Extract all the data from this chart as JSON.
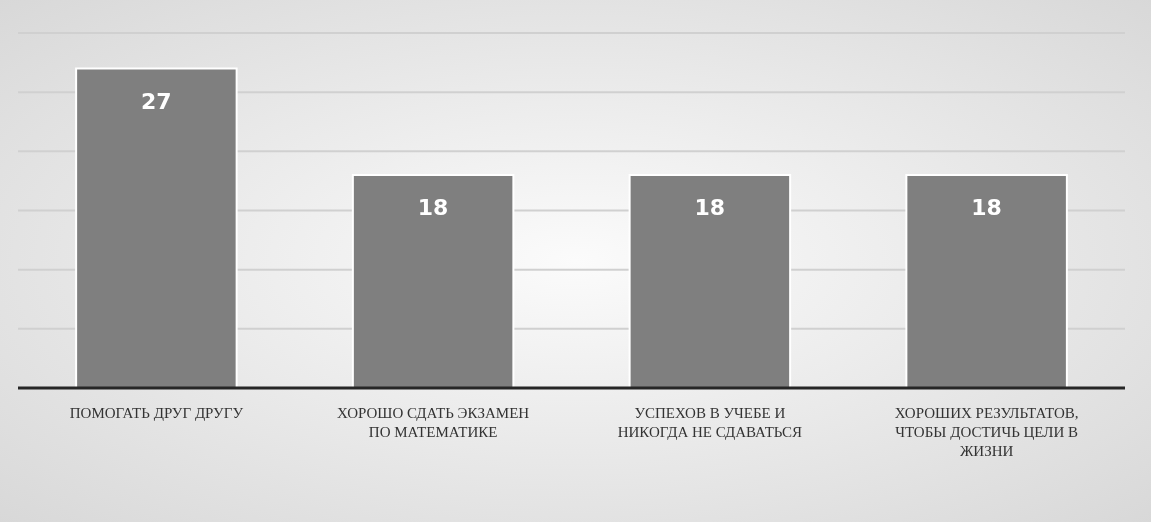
{
  "chart_data": {
    "type": "bar",
    "categories": [
      "ПОМОГАТЬ ДРУГ ДРУГУ",
      "ХОРОШО СДАТЬ ЭКЗАМЕН ПО МАТЕМАТИКЕ",
      "УСПЕХОВ В УЧЕБЕ И НИКОГДА НЕ СДАВАТЬСЯ",
      "ХОРОШИХ РЕЗУЛЬТАТОВ, ЧТОБЫ ДОСТИЧЬ ЦЕЛИ В ЖИЗНИ"
    ],
    "values": [
      27,
      18,
      18,
      18
    ],
    "color": "#7f7f7f",
    "data_labels": true,
    "ylim": [
      0,
      30
    ],
    "yticks": [
      {
        "value": 0,
        "label": null
      },
      {
        "value": 5,
        "label": null
      },
      {
        "value": 10,
        "label": null
      },
      {
        "value": 15,
        "label": null
      },
      {
        "value": 20,
        "label": null
      },
      {
        "value": 25,
        "label": null
      },
      {
        "value": 30,
        "label": null
      }
    ],
    "grid": true,
    "tick_labels": "x"
  }
}
